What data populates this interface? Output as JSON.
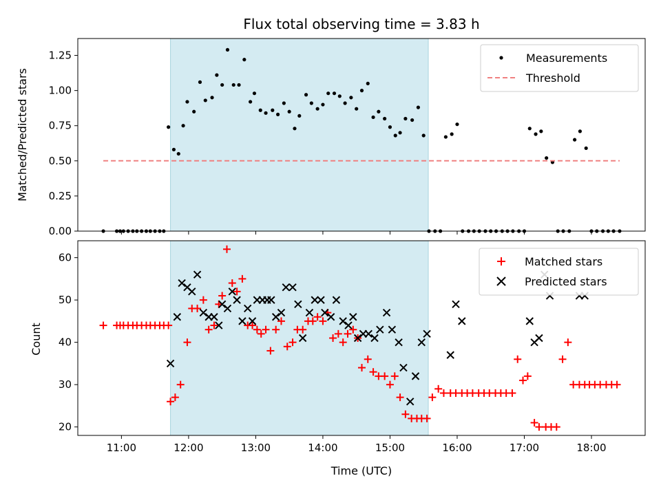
{
  "chart_data": [
    {
      "type": "scatter",
      "title": "Flux total observing time = 3.83 h",
      "xlabel": "",
      "ylabel": "Matched/Predicted stars",
      "xlim": [
        10.35,
        18.8
      ],
      "ylim": [
        0,
        1.37
      ],
      "yticks": [
        0.0,
        0.25,
        0.5,
        0.75,
        1.0,
        1.25
      ],
      "ytick_labels": [
        "0.00",
        "0.25",
        "0.50",
        "0.75",
        "1.00",
        "1.25"
      ],
      "shaded_region": [
        11.73,
        15.57
      ],
      "shaded_color": "#d4ebf2",
      "legend_position": "top-right",
      "series": [
        {
          "name": "Measurements",
          "marker": "dot",
          "color": "#000000",
          "x": [
            10.73,
            10.93,
            10.98,
            11.03,
            11.1,
            11.17,
            11.23,
            11.3,
            11.37,
            11.43,
            11.5,
            11.57,
            11.63,
            11.7,
            11.78,
            11.85,
            11.92,
            11.98,
            12.08,
            12.17,
            12.25,
            12.35,
            12.42,
            12.5,
            12.58,
            12.67,
            12.75,
            12.83,
            12.92,
            12.98,
            13.07,
            13.15,
            13.25,
            13.33,
            13.42,
            13.5,
            13.58,
            13.65,
            13.75,
            13.83,
            13.92,
            14.0,
            14.08,
            14.17,
            14.25,
            14.33,
            14.42,
            14.5,
            14.58,
            14.67,
            14.75,
            14.83,
            14.92,
            15.0,
            15.08,
            15.15,
            15.23,
            15.33,
            15.42,
            15.5,
            15.58,
            15.67,
            15.75,
            15.83,
            15.92,
            16.0,
            16.08,
            16.17,
            16.25,
            16.33,
            16.42,
            16.5,
            16.58,
            16.67,
            16.75,
            16.83,
            16.92,
            17.0,
            17.08,
            17.17,
            17.25,
            17.33,
            17.42,
            17.5,
            17.58,
            17.67,
            17.75,
            17.83,
            17.92,
            18.0,
            18.08,
            18.17,
            18.25,
            18.33,
            18.42
          ],
          "y": [
            0.0,
            0.0,
            0.0,
            0.0,
            0.0,
            0.0,
            0.0,
            0.0,
            0.0,
            0.0,
            0.0,
            0.0,
            0.0,
            0.74,
            0.58,
            0.55,
            0.75,
            0.92,
            0.85,
            1.06,
            0.93,
            0.95,
            1.11,
            1.04,
            1.29,
            1.04,
            1.04,
            1.22,
            0.92,
            0.98,
            0.86,
            0.84,
            0.86,
            0.83,
            0.91,
            0.85,
            0.73,
            0.82,
            0.97,
            0.91,
            0.87,
            0.9,
            0.98,
            0.98,
            0.96,
            0.91,
            0.95,
            0.87,
            1.0,
            1.05,
            0.81,
            0.85,
            0.8,
            0.74,
            0.68,
            0.7,
            0.8,
            0.79,
            0.88,
            0.68,
            0.0,
            0.0,
            0.0,
            0.67,
            0.69,
            0.76,
            0.0,
            0.0,
            0.0,
            0.0,
            0.0,
            0.0,
            0.0,
            0.0,
            0.0,
            0.0,
            0.0,
            0.0,
            0.73,
            0.69,
            0.71,
            0.52,
            0.49,
            0.0,
            0.0,
            0.0,
            0.65,
            0.71,
            0.59,
            0.0,
            0.0,
            0.0,
            0.0,
            0.0,
            0.0
          ]
        },
        {
          "name": "Threshold",
          "marker": "dashed-line",
          "color": "#f08080",
          "x": [
            10.73,
            18.42
          ],
          "y": [
            0.5,
            0.5
          ]
        }
      ]
    },
    {
      "type": "scatter",
      "title": "",
      "xlabel": "Time (UTC)",
      "ylabel": "Count",
      "xlim": [
        10.35,
        18.8
      ],
      "ylim": [
        18,
        64
      ],
      "yticks": [
        20,
        30,
        40,
        50,
        60
      ],
      "ytick_labels": [
        "20",
        "30",
        "40",
        "50",
        "60"
      ],
      "xticks": [
        11,
        12,
        13,
        14,
        15,
        16,
        17,
        18
      ],
      "xtick_labels": [
        "11:00",
        "12:00",
        "13:00",
        "14:00",
        "15:00",
        "16:00",
        "17:00",
        "18:00"
      ],
      "shaded_region": [
        11.73,
        15.57
      ],
      "shaded_color": "#d4ebf2",
      "legend_position": "top-right",
      "series": [
        {
          "name": "Matched stars",
          "marker": "plus",
          "color": "#ff0000",
          "x": [
            10.73,
            10.93,
            10.98,
            11.03,
            11.1,
            11.17,
            11.23,
            11.3,
            11.37,
            11.43,
            11.5,
            11.57,
            11.63,
            11.7,
            11.73,
            11.8,
            11.88,
            11.98,
            12.05,
            12.13,
            12.22,
            12.3,
            12.38,
            12.45,
            12.5,
            12.57,
            12.65,
            12.72,
            12.8,
            12.88,
            12.95,
            13.02,
            13.08,
            13.15,
            13.22,
            13.3,
            13.38,
            13.47,
            13.55,
            13.62,
            13.7,
            13.78,
            13.85,
            13.92,
            14.0,
            14.07,
            14.15,
            14.23,
            14.3,
            14.37,
            14.45,
            14.52,
            14.58,
            14.67,
            14.75,
            14.83,
            14.92,
            15.0,
            15.07,
            15.15,
            15.23,
            15.32,
            15.4,
            15.47,
            15.55,
            15.63,
            15.72,
            15.8,
            15.9,
            15.98,
            16.07,
            16.15,
            16.23,
            16.32,
            16.4,
            16.48,
            16.57,
            16.65,
            16.73,
            16.82,
            16.9,
            16.98,
            17.05,
            17.15,
            17.22,
            17.32,
            17.4,
            17.48,
            17.57,
            17.65,
            17.73,
            17.82,
            17.9,
            17.97,
            18.05,
            18.13,
            18.22,
            18.3,
            18.38
          ],
          "y": [
            44,
            44,
            44,
            44,
            44,
            44,
            44,
            44,
            44,
            44,
            44,
            44,
            44,
            44,
            26,
            27,
            30,
            40,
            48,
            48,
            50,
            43,
            44,
            49,
            51,
            62,
            54,
            52,
            55,
            44,
            44,
            43,
            42,
            43,
            38,
            43,
            45,
            39,
            40,
            43,
            43,
            45,
            45,
            46,
            45,
            47,
            41,
            42,
            40,
            42,
            43,
            41,
            34,
            36,
            33,
            32,
            32,
            30,
            32,
            27,
            23,
            22,
            22,
            22,
            22,
            27,
            29,
            28,
            28,
            28,
            28,
            28,
            28,
            28,
            28,
            28,
            28,
            28,
            28,
            28,
            36,
            31,
            32,
            21,
            20,
            20,
            20,
            20,
            36,
            40,
            30,
            30,
            30,
            30,
            30,
            30,
            30,
            30,
            30
          ],
          "_note": "points listed left-to-right"
        },
        {
          "name": "Predicted stars",
          "marker": "x",
          "color": "#000000",
          "x": [
            11.73,
            11.83,
            11.9,
            11.98,
            12.05,
            12.13,
            12.22,
            12.3,
            12.38,
            12.45,
            12.5,
            12.58,
            12.65,
            12.72,
            12.8,
            12.88,
            12.95,
            13.02,
            13.1,
            13.17,
            13.23,
            13.3,
            13.38,
            13.45,
            13.55,
            13.63,
            13.7,
            13.8,
            13.88,
            13.97,
            14.03,
            14.12,
            14.2,
            14.3,
            14.38,
            14.45,
            14.52,
            14.6,
            14.68,
            14.77,
            14.85,
            14.95,
            15.03,
            15.13,
            15.2,
            15.3,
            15.38,
            15.47,
            15.55,
            15.9,
            15.98,
            16.07,
            17.08,
            17.15,
            17.22,
            17.3,
            17.38,
            17.82,
            17.9
          ],
          "y": [
            35,
            46,
            54,
            53,
            52,
            56,
            47,
            46,
            46,
            44,
            49,
            48,
            52,
            50,
            45,
            48,
            45,
            50,
            50,
            50,
            50,
            46,
            47,
            53,
            53,
            49,
            41,
            47,
            50,
            50,
            47,
            46,
            50,
            45,
            44,
            46,
            41,
            42,
            42,
            41,
            43,
            47,
            43,
            40,
            34,
            26,
            32,
            40,
            42,
            37,
            49,
            45,
            45,
            40,
            41,
            56,
            51,
            51,
            51
          ]
        }
      ]
    }
  ]
}
